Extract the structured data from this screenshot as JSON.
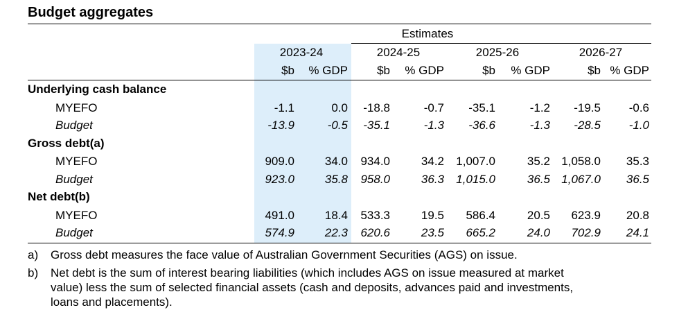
{
  "title": "Budget aggregates",
  "table": {
    "group_header": "Estimates",
    "years": [
      {
        "label": "2023-24",
        "columns": [
          "$b",
          "% GDP"
        ]
      },
      {
        "label": "2024-25",
        "columns": [
          "$b",
          "% GDP"
        ]
      },
      {
        "label": "2025-26",
        "columns": [
          "$b",
          "% GDP"
        ]
      },
      {
        "label": "2026-27",
        "columns": [
          "$b",
          "% GDP"
        ]
      }
    ],
    "sections": [
      {
        "label": "Underlying cash balance",
        "rows": [
          {
            "label": "MYEFO",
            "values": [
              "-1.1",
              "0.0",
              "-18.8",
              "-0.7",
              "-35.1",
              "-1.2",
              "-19.5",
              "-0.6"
            ]
          },
          {
            "label": "Budget",
            "values": [
              "-13.9",
              "-0.5",
              "-35.1",
              "-1.3",
              "-36.6",
              "-1.3",
              "-28.5",
              "-1.0"
            ]
          }
        ]
      },
      {
        "label": "Gross debt(a)",
        "rows": [
          {
            "label": "MYEFO",
            "values": [
              "909.0",
              "34.0",
              "934.0",
              "34.2",
              "1,007.0",
              "35.2",
              "1,058.0",
              "35.3"
            ]
          },
          {
            "label": "Budget",
            "values": [
              "923.0",
              "35.8",
              "958.0",
              "36.3",
              "1,015.0",
              "36.5",
              "1,067.0",
              "36.5"
            ]
          }
        ]
      },
      {
        "label": "Net debt(b)",
        "rows": [
          {
            "label": "MYEFO",
            "values": [
              "491.0",
              "18.4",
              "533.3",
              "19.5",
              "586.4",
              "20.5",
              "623.9",
              "20.8"
            ]
          },
          {
            "label": "Budget",
            "values": [
              "574.9",
              "22.3",
              "620.6",
              "23.5",
              "665.2",
              "24.0",
              "702.9",
              "24.1"
            ]
          }
        ]
      }
    ]
  },
  "notes": [
    {
      "marker": "a)",
      "lines": [
        "Gross debt measures the face value of Australian Government Securities (AGS) on issue."
      ]
    },
    {
      "marker": "b)",
      "lines": [
        "Net debt is the sum of interest bearing liabilities (which includes AGS on issue measured at market",
        "value) less the sum of selected financial assets (cash and deposits, advances paid and investments,",
        "loans and placements)."
      ]
    }
  ]
}
